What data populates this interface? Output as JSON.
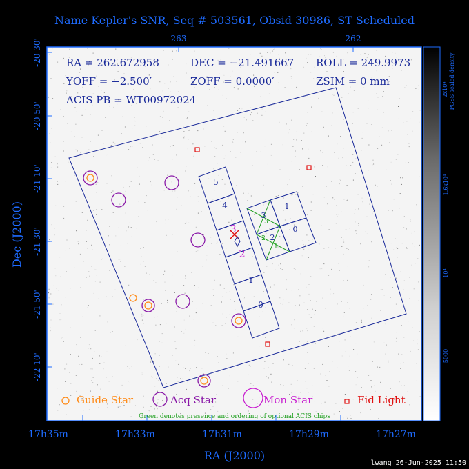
{
  "title": "Name Kepler's SNR, Seq # 503561, Obsid 30986, ST Scheduled",
  "axes": {
    "xlabel": "RA (J2000)",
    "ylabel": "Dec (J2000)",
    "x_ticks_bottom": [
      "17h35m",
      "17h33m",
      "17h31m",
      "17h29m",
      "17h27m"
    ],
    "x_ticks_top": [
      "263",
      "262"
    ],
    "y_ticks": [
      "-20 30'",
      "-20 50'",
      "-21 10'",
      "-21 30'",
      "-21 50'",
      "-22 10'"
    ]
  },
  "info": {
    "ra": "RA = 262.672958",
    "dec": "DEC = −21.491667",
    "roll": "ROLL = 249.9973",
    "yoff": "YOFF =  −2.500′",
    "zoff": "ZOFF =  0.0000′",
    "zsim": "ZSIM = 0 mm",
    "acis_pb": "ACIS PB = WT00972024"
  },
  "colorbar": {
    "label1": "2x10⁴",
    "label2": "PGSS scaled density",
    "ticks": [
      "1.6x10⁴",
      "10⁴",
      "5000"
    ]
  },
  "acis_s_chips": [
    "5",
    "4",
    "3",
    "2",
    "1",
    "0"
  ],
  "acis_i_chips": [
    "3",
    "1",
    "2",
    "0"
  ],
  "optional_chip_labels": [
    "3",
    "2",
    "1"
  ],
  "legend": {
    "guide": "Guide Star",
    "acq": "Acq Star",
    "mon": "Mon Star",
    "fid": "Fid Light",
    "note": "Green denotes presence and ordering of optional ACIS chips"
  },
  "footer": "lwang 26-Jun-2025 11:50",
  "colors": {
    "blue": "#1e6bff",
    "guide": "#ff8c1a",
    "acq": "#8a1aa8",
    "mon": "#c81ed0",
    "fid": "#e01010",
    "green": "#20a020",
    "navy": "#1a2a9a"
  }
}
